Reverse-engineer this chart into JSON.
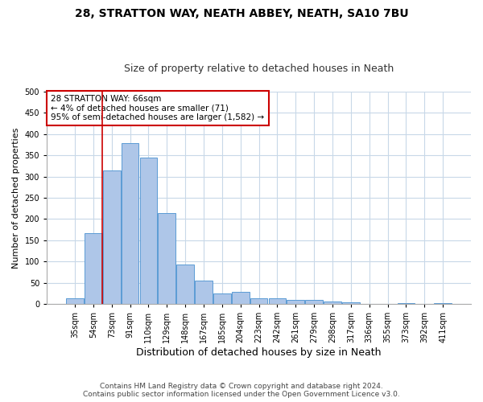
{
  "title1": "28, STRATTON WAY, NEATH ABBEY, NEATH, SA10 7BU",
  "title2": "Size of property relative to detached houses in Neath",
  "xlabel": "Distribution of detached houses by size in Neath",
  "ylabel": "Number of detached properties",
  "categories": [
    "35sqm",
    "54sqm",
    "73sqm",
    "91sqm",
    "110sqm",
    "129sqm",
    "148sqm",
    "167sqm",
    "185sqm",
    "204sqm",
    "223sqm",
    "242sqm",
    "261sqm",
    "279sqm",
    "298sqm",
    "317sqm",
    "336sqm",
    "355sqm",
    "373sqm",
    "392sqm",
    "411sqm"
  ],
  "values": [
    13,
    167,
    315,
    378,
    345,
    215,
    93,
    55,
    24,
    28,
    14,
    13,
    10,
    9,
    6,
    4,
    1,
    0,
    2,
    1,
    2
  ],
  "bar_color": "#aec6e8",
  "bar_edge_color": "#5b9bd5",
  "vline_color": "#cc0000",
  "annotation_text": "28 STRATTON WAY: 66sqm\n← 4% of detached houses are smaller (71)\n95% of semi-detached houses are larger (1,582) →",
  "annotation_box_color": "#ffffff",
  "annotation_box_edge_color": "#cc0000",
  "ylim": [
    0,
    500
  ],
  "yticks": [
    0,
    50,
    100,
    150,
    200,
    250,
    300,
    350,
    400,
    450,
    500
  ],
  "footer1": "Contains HM Land Registry data © Crown copyright and database right 2024.",
  "footer2": "Contains public sector information licensed under the Open Government Licence v3.0.",
  "background_color": "#ffffff",
  "grid_color": "#c8d8e8",
  "title1_fontsize": 10,
  "title2_fontsize": 9,
  "xlabel_fontsize": 9,
  "ylabel_fontsize": 8,
  "tick_fontsize": 7,
  "annotation_fontsize": 7.5,
  "footer_fontsize": 6.5
}
